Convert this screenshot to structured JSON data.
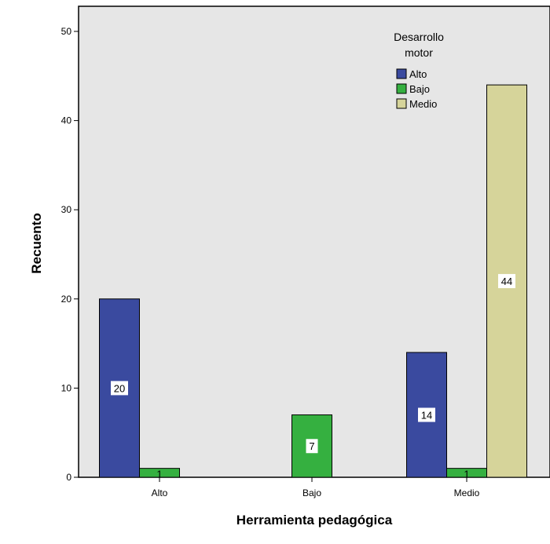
{
  "chart_data": {
    "type": "bar",
    "xlabel": "Herramienta pedagógica",
    "ylabel": "Recuento",
    "categories": [
      "Alto",
      "Bajo",
      "Medio"
    ],
    "ylim": [
      0,
      50
    ],
    "yticks": [
      "0",
      "10",
      "20",
      "30",
      "40",
      "50"
    ],
    "grid": false,
    "legend_title": "Desarrollo motor",
    "legend_position": "top-right",
    "series": [
      {
        "name": "Alto",
        "color": "#3a4a9f",
        "values": [
          20,
          null,
          14
        ]
      },
      {
        "name": "Bajo",
        "color": "#35b040",
        "values": [
          1,
          7,
          1
        ]
      },
      {
        "name": "Medio",
        "color": "#d6d49a",
        "values": [
          null,
          null,
          44
        ]
      }
    ],
    "data_labels": [
      {
        "category": "Alto",
        "series": "Alto",
        "text": "20"
      },
      {
        "category": "Alto",
        "series": "Bajo",
        "text": "1"
      },
      {
        "category": "Bajo",
        "series": "Bajo",
        "text": "7"
      },
      {
        "category": "Medio",
        "series": "Alto",
        "text": "14"
      },
      {
        "category": "Medio",
        "series": "Bajo",
        "text": "1"
      },
      {
        "category": "Medio",
        "series": "Medio",
        "text": "44"
      }
    ],
    "plot_background": "#e6e6e6"
  }
}
